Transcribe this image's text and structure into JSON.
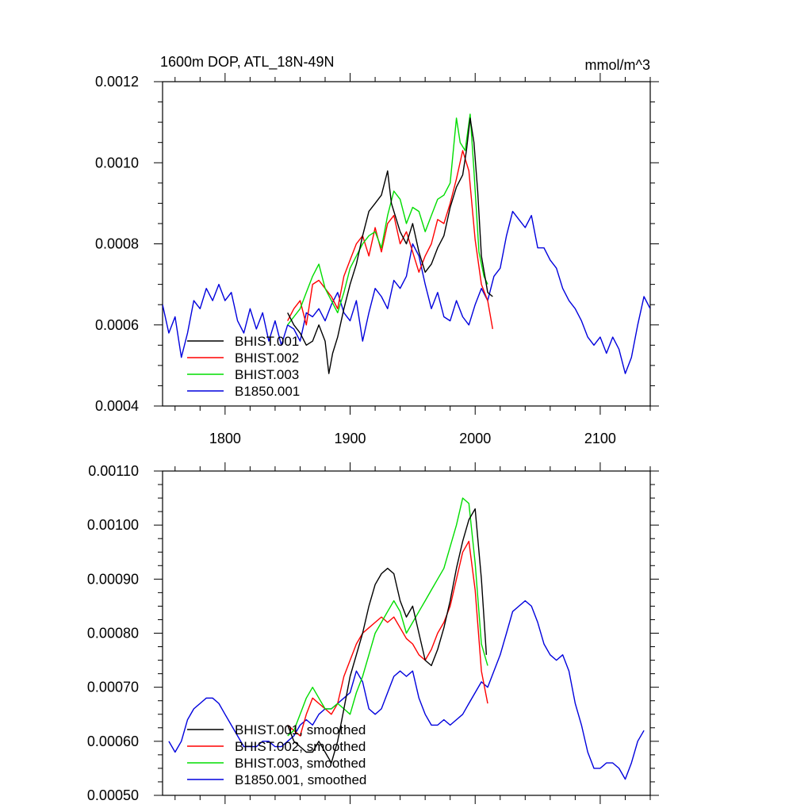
{
  "chart_data": [
    {
      "type": "line",
      "title": "1600m DOP, ATL_18N-49N",
      "units": "mmol/m^3",
      "xlim": [
        1750,
        2140
      ],
      "ylim": [
        0.0004,
        0.0012
      ],
      "xticks": [
        1800,
        1900,
        2000,
        2100
      ],
      "yticks": [
        0.0004,
        0.0006,
        0.0008,
        0.001,
        0.0012
      ],
      "ytick_labels": [
        "0.0004",
        "0.0006",
        "0.0008",
        "0.0010",
        "0.0012"
      ],
      "xtick_labels": [
        "1800",
        "1900",
        "2000",
        "2100"
      ],
      "legend_position": "bottom-left",
      "series": [
        {
          "name": "BHIST.001",
          "color": "#000000",
          "x": [
            1850,
            1855,
            1860,
            1865,
            1870,
            1875,
            1880,
            1883,
            1886,
            1890,
            1895,
            1900,
            1905,
            1910,
            1915,
            1920,
            1925,
            1930,
            1933,
            1936,
            1940,
            1945,
            1950,
            1955,
            1960,
            1965,
            1970,
            1975,
            1980,
            1985,
            1990,
            1993,
            1996,
            1999,
            2002,
            2005,
            2010,
            2014
          ],
          "y": [
            0.00063,
            0.0006,
            0.00058,
            0.00055,
            0.00056,
            0.0006,
            0.00056,
            0.00048,
            0.00053,
            0.00057,
            0.00064,
            0.0007,
            0.00075,
            0.00082,
            0.00088,
            0.0009,
            0.00092,
            0.00098,
            0.0009,
            0.00087,
            0.00083,
            0.0008,
            0.00085,
            0.00078,
            0.00073,
            0.00075,
            0.00079,
            0.00082,
            0.00089,
            0.00094,
            0.00097,
            0.00103,
            0.00111,
            0.00105,
            0.00093,
            0.00077,
            0.00068,
            0.00067
          ]
        },
        {
          "name": "BHIST.002",
          "color": "#ff0000",
          "x": [
            1850,
            1855,
            1860,
            1865,
            1870,
            1875,
            1880,
            1885,
            1890,
            1895,
            1900,
            1905,
            1910,
            1915,
            1920,
            1925,
            1930,
            1935,
            1940,
            1945,
            1950,
            1955,
            1960,
            1965,
            1970,
            1975,
            1980,
            1985,
            1990,
            1995,
            2000,
            2005,
            2010,
            2014
          ],
          "y": [
            0.00061,
            0.00064,
            0.00066,
            0.0006,
            0.0007,
            0.00071,
            0.00069,
            0.00067,
            0.00064,
            0.00072,
            0.00076,
            0.0008,
            0.00082,
            0.00077,
            0.00084,
            0.00078,
            0.00085,
            0.00087,
            0.0008,
            0.00083,
            0.00078,
            0.00073,
            0.00077,
            0.0008,
            0.00086,
            0.00085,
            0.0009,
            0.00096,
            0.00103,
            0.00098,
            0.00081,
            0.0007,
            0.00066,
            0.00059
          ]
        },
        {
          "name": "BHIST.003",
          "color": "#00dd00",
          "x": [
            1850,
            1855,
            1860,
            1865,
            1870,
            1875,
            1880,
            1885,
            1890,
            1895,
            1900,
            1905,
            1910,
            1915,
            1920,
            1925,
            1930,
            1935,
            1940,
            1945,
            1950,
            1955,
            1960,
            1965,
            1970,
            1975,
            1980,
            1985,
            1988,
            1992,
            1996,
            1999,
            2003,
            2007,
            2010
          ],
          "y": [
            0.0006,
            0.00062,
            0.00064,
            0.00068,
            0.00072,
            0.00075,
            0.00069,
            0.00066,
            0.00063,
            0.00068,
            0.00074,
            0.00077,
            0.0008,
            0.00082,
            0.00083,
            0.00079,
            0.00087,
            0.00093,
            0.00091,
            0.00085,
            0.00089,
            0.00088,
            0.00083,
            0.00087,
            0.00091,
            0.00092,
            0.00095,
            0.00111,
            0.00105,
            0.00103,
            0.00112,
            0.00098,
            0.00078,
            0.00072,
            0.0007
          ]
        },
        {
          "name": "B1850.001",
          "color": "#0000dd",
          "x": [
            1750,
            1755,
            1760,
            1765,
            1770,
            1775,
            1780,
            1785,
            1790,
            1795,
            1800,
            1805,
            1810,
            1815,
            1820,
            1825,
            1830,
            1835,
            1840,
            1845,
            1850,
            1855,
            1860,
            1865,
            1870,
            1875,
            1880,
            1885,
            1890,
            1895,
            1900,
            1905,
            1910,
            1915,
            1920,
            1925,
            1930,
            1935,
            1940,
            1945,
            1950,
            1955,
            1960,
            1965,
            1970,
            1975,
            1980,
            1985,
            1990,
            1995,
            2000,
            2005,
            2010,
            2015,
            2020,
            2025,
            2030,
            2035,
            2040,
            2045,
            2050,
            2055,
            2060,
            2065,
            2070,
            2075,
            2080,
            2085,
            2090,
            2095,
            2100,
            2105,
            2110,
            2115,
            2120,
            2125,
            2130,
            2135,
            2140
          ],
          "y": [
            0.00065,
            0.00058,
            0.00062,
            0.00052,
            0.00058,
            0.00066,
            0.00064,
            0.00069,
            0.00066,
            0.0007,
            0.00066,
            0.00068,
            0.00061,
            0.00058,
            0.00064,
            0.00059,
            0.00063,
            0.00056,
            0.00061,
            0.00055,
            0.0006,
            0.00059,
            0.00056,
            0.00063,
            0.00062,
            0.00064,
            0.00061,
            0.00065,
            0.00068,
            0.00063,
            0.00061,
            0.00066,
            0.00056,
            0.00063,
            0.00069,
            0.00067,
            0.00064,
            0.00071,
            0.00069,
            0.00072,
            0.0008,
            0.00077,
            0.0007,
            0.00064,
            0.00068,
            0.00062,
            0.00061,
            0.00066,
            0.00062,
            0.0006,
            0.00065,
            0.00069,
            0.00066,
            0.00072,
            0.00074,
            0.00082,
            0.00088,
            0.00086,
            0.00084,
            0.00087,
            0.00079,
            0.00079,
            0.00076,
            0.00074,
            0.00069,
            0.00066,
            0.00064,
            0.00061,
            0.00057,
            0.00055,
            0.00057,
            0.00053,
            0.00057,
            0.00054,
            0.00048,
            0.00052,
            0.0006,
            0.00067,
            0.00064
          ]
        }
      ]
    },
    {
      "type": "line",
      "xlim": [
        1750,
        2140
      ],
      "ylim": [
        0.0005,
        0.0011
      ],
      "xticks": [
        1800,
        1900,
        2000,
        2100
      ],
      "yticks": [
        0.0005,
        0.0006,
        0.0007,
        0.0008,
        0.0009,
        0.001,
        0.0011
      ],
      "ytick_labels": [
        "0.00050",
        "0.00060",
        "0.00070",
        "0.00080",
        "0.00090",
        "0.00100",
        "0.00110"
      ],
      "legend_position": "bottom-left",
      "series": [
        {
          "name": "BHIST.001, smoothed",
          "color": "#000000",
          "x": [
            1850,
            1855,
            1860,
            1865,
            1870,
            1875,
            1880,
            1885,
            1890,
            1895,
            1900,
            1905,
            1910,
            1915,
            1920,
            1925,
            1930,
            1935,
            1940,
            1945,
            1950,
            1955,
            1960,
            1965,
            1970,
            1975,
            1980,
            1985,
            1990,
            1995,
            2000,
            2005,
            2009
          ],
          "y": [
            0.00063,
            0.0006,
            0.00059,
            0.00058,
            0.00058,
            0.0006,
            0.00058,
            0.00056,
            0.0006,
            0.00066,
            0.00072,
            0.00076,
            0.0008,
            0.00085,
            0.00089,
            0.00091,
            0.00092,
            0.00091,
            0.00086,
            0.00083,
            0.00085,
            0.0008,
            0.00075,
            0.00074,
            0.00077,
            0.00081,
            0.00086,
            0.00092,
            0.00097,
            0.00101,
            0.00103,
            0.0009,
            0.00076
          ]
        },
        {
          "name": "BHIST.002, smoothed",
          "color": "#ff0000",
          "x": [
            1850,
            1855,
            1860,
            1865,
            1870,
            1875,
            1880,
            1885,
            1890,
            1895,
            1900,
            1905,
            1910,
            1915,
            1920,
            1925,
            1930,
            1935,
            1940,
            1945,
            1950,
            1955,
            1960,
            1965,
            1970,
            1975,
            1980,
            1985,
            1990,
            1995,
            2000,
            2005,
            2010
          ],
          "y": [
            0.00063,
            0.00062,
            0.00061,
            0.00065,
            0.00068,
            0.00067,
            0.00066,
            0.00065,
            0.00067,
            0.00072,
            0.00075,
            0.00078,
            0.0008,
            0.00081,
            0.00082,
            0.00083,
            0.00082,
            0.00083,
            0.00081,
            0.00079,
            0.00078,
            0.00076,
            0.00075,
            0.00077,
            0.0008,
            0.00082,
            0.00085,
            0.0009,
            0.00095,
            0.00097,
            0.00088,
            0.00073,
            0.00067
          ]
        },
        {
          "name": "BHIST.003, smoothed",
          "color": "#00dd00",
          "x": [
            1850,
            1855,
            1860,
            1865,
            1870,
            1875,
            1880,
            1885,
            1890,
            1895,
            1900,
            1905,
            1910,
            1915,
            1920,
            1925,
            1930,
            1935,
            1940,
            1945,
            1950,
            1955,
            1960,
            1965,
            1970,
            1975,
            1980,
            1985,
            1990,
            1995,
            2000,
            2005,
            2010
          ],
          "y": [
            0.00061,
            0.00062,
            0.00065,
            0.00068,
            0.0007,
            0.00068,
            0.00066,
            0.00066,
            0.00067,
            0.00066,
            0.00065,
            0.00069,
            0.00072,
            0.00076,
            0.0008,
            0.00082,
            0.00084,
            0.00086,
            0.00084,
            0.0008,
            0.00082,
            0.00084,
            0.00086,
            0.00088,
            0.0009,
            0.00092,
            0.00096,
            0.001,
            0.00105,
            0.00104,
            0.00093,
            0.00078,
            0.00074
          ]
        },
        {
          "name": "B1850.001, smoothed",
          "color": "#0000dd",
          "x": [
            1755,
            1760,
            1765,
            1770,
            1775,
            1780,
            1785,
            1790,
            1795,
            1800,
            1805,
            1810,
            1815,
            1820,
            1825,
            1830,
            1835,
            1840,
            1845,
            1850,
            1855,
            1860,
            1865,
            1870,
            1875,
            1880,
            1885,
            1890,
            1895,
            1900,
            1905,
            1910,
            1915,
            1920,
            1925,
            1930,
            1935,
            1940,
            1945,
            1950,
            1955,
            1960,
            1965,
            1970,
            1975,
            1980,
            1985,
            1990,
            1995,
            2000,
            2005,
            2010,
            2015,
            2020,
            2025,
            2030,
            2035,
            2040,
            2045,
            2050,
            2055,
            2060,
            2065,
            2070,
            2075,
            2080,
            2085,
            2090,
            2095,
            2100,
            2105,
            2110,
            2115,
            2120,
            2125,
            2130,
            2135
          ],
          "y": [
            0.0006,
            0.00058,
            0.0006,
            0.00064,
            0.00066,
            0.00067,
            0.00068,
            0.00068,
            0.00067,
            0.00065,
            0.00063,
            0.00061,
            0.00059,
            0.00059,
            0.00059,
            0.0006,
            0.0006,
            0.00059,
            0.00059,
            0.0006,
            0.00061,
            0.00063,
            0.00064,
            0.00063,
            0.00065,
            0.00066,
            0.00066,
            0.00067,
            0.00068,
            0.00069,
            0.00073,
            0.00071,
            0.00066,
            0.00065,
            0.00066,
            0.00069,
            0.00072,
            0.00073,
            0.00072,
            0.00073,
            0.00068,
            0.00065,
            0.00063,
            0.00063,
            0.00064,
            0.00063,
            0.00064,
            0.00065,
            0.00067,
            0.00069,
            0.00071,
            0.0007,
            0.00073,
            0.00076,
            0.0008,
            0.00084,
            0.00085,
            0.00086,
            0.00085,
            0.00082,
            0.00078,
            0.00076,
            0.00075,
            0.00076,
            0.00073,
            0.00067,
            0.00063,
            0.00058,
            0.00055,
            0.00055,
            0.00056,
            0.00056,
            0.00055,
            0.00053,
            0.00056,
            0.0006,
            0.00062
          ]
        }
      ]
    }
  ]
}
